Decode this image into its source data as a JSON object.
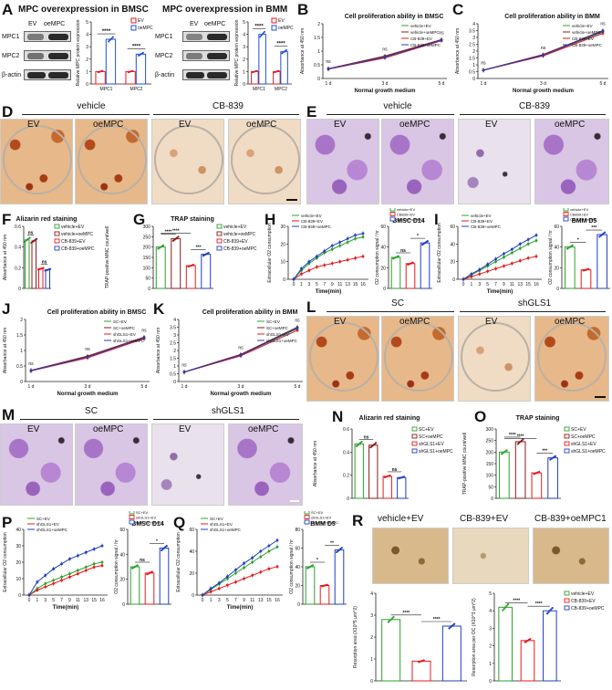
{
  "panels": {
    "A": {
      "letter": "A",
      "left": {
        "title": "MPC overexpression in BMSC",
        "cols": [
          "EV",
          "oeMPC"
        ],
        "rows": [
          "MPC1",
          "MPC2",
          "β-actin"
        ],
        "legend": [
          "EV",
          "oeMPC"
        ],
        "ylabel": "Relative MPC protein expression",
        "sig": [
          "****",
          "****"
        ]
      },
      "right": {
        "title": "MPC overexpression in BMM",
        "cols": [
          "EV",
          "oeMPC"
        ],
        "rows": [
          "MPC1",
          "MPC2",
          "β-actin"
        ],
        "legend": [
          "EV",
          "oeMPC"
        ],
        "ylabel": "Relative MPC protein expression",
        "sig": [
          "****",
          "****"
        ]
      }
    },
    "B": {
      "letter": "B"
    },
    "C": {
      "letter": "C"
    },
    "D": {
      "letter": "D",
      "groups": [
        "vehicle",
        "CB-839"
      ],
      "labels": [
        "EV",
        "oeMPC",
        "EV",
        "oeMPC"
      ]
    },
    "E": {
      "letter": "E",
      "groups": [
        "vehicle",
        "CB-839"
      ],
      "labels": [
        "EV",
        "oeMPC",
        "EV",
        "oeMPC"
      ]
    },
    "F": {
      "letter": "F"
    },
    "G": {
      "letter": "G"
    },
    "H": {
      "letter": "H"
    },
    "I": {
      "letter": "I"
    },
    "J": {
      "letter": "J"
    },
    "K": {
      "letter": "K"
    },
    "L": {
      "letter": "L",
      "groups": [
        "SC",
        "shGLS1"
      ],
      "labels": [
        "EV",
        "oeMPC",
        "EV",
        "oeMPC"
      ]
    },
    "M": {
      "letter": "M",
      "groups": [
        "SC",
        "shGLS1"
      ],
      "labels": [
        "EV",
        "oeMPC",
        "EV",
        "oeMPC"
      ]
    },
    "N": {
      "letter": "N"
    },
    "O": {
      "letter": "O"
    },
    "P": {
      "letter": "P"
    },
    "Q": {
      "letter": "Q"
    },
    "R": {
      "letter": "R",
      "labels": [
        "vehicle+EV",
        "CB-839+EV",
        "CB-839+oeMPC1"
      ]
    }
  },
  "chart_data": [
    {
      "id": "A-BMSC",
      "type": "bar",
      "categories": [
        "MPC1",
        "MPC2"
      ],
      "series": [
        {
          "name": "EV",
          "values": [
            1.0,
            1.0
          ]
        },
        {
          "name": "oeMPC",
          "values": [
            3.6,
            2.4
          ]
        }
      ],
      "ylabel": "Relative MPC protein expression",
      "ylim": [
        0,
        5
      ],
      "yticks": [
        0,
        1,
        2,
        3,
        4,
        5
      ],
      "sig": [
        "****",
        "****"
      ],
      "colors": [
        "#e41a1c",
        "#1f4fd8"
      ]
    },
    {
      "id": "A-BMM",
      "type": "bar",
      "categories": [
        "MPC1",
        "MPC2"
      ],
      "series": [
        {
          "name": "EV",
          "values": [
            1.0,
            1.0
          ]
        },
        {
          "name": "oeMPC",
          "values": [
            4.0,
            2.6
          ]
        }
      ],
      "ylabel": "Relative MPC protein expression",
      "ylim": [
        0,
        5
      ],
      "yticks": [
        0,
        1,
        2,
        3,
        4,
        5
      ],
      "sig": [
        "****",
        "****"
      ],
      "colors": [
        "#e41a1c",
        "#1f4fd8"
      ]
    },
    {
      "id": "B",
      "type": "line",
      "title": "Cell proliferation ability in BMSC",
      "categories": [
        "1 d",
        "3 d",
        "5 d"
      ],
      "series": [
        {
          "name": "vehicle+EV",
          "values": [
            0.35,
            0.8,
            1.4
          ]
        },
        {
          "name": "vehicle+oeMPC",
          "values": [
            0.36,
            0.82,
            1.42
          ]
        },
        {
          "name": "CB-839+EV",
          "values": [
            0.34,
            0.75,
            1.38
          ]
        },
        {
          "name": "CB-839+oeMPC",
          "values": [
            0.35,
            0.78,
            1.4
          ]
        }
      ],
      "xlabel": "Normal growth medium",
      "ylabel": "Absorbance at 450 nm",
      "ylim": [
        0,
        2.0
      ],
      "yticks": [
        0,
        0.5,
        1.0,
        1.5,
        2.0
      ],
      "sig": [
        "ns",
        "ns",
        "ns"
      ],
      "colors": [
        "#2ca02c",
        "#8b1a1a",
        "#e41a1c",
        "#1f3fbf"
      ]
    },
    {
      "id": "C",
      "type": "line",
      "title": "Cell proliferation ability in BMM",
      "categories": [
        "1 d",
        "3 d",
        "5 d"
      ],
      "series": [
        {
          "name": "vehicle+EV",
          "values": [
            0.6,
            1.7,
            3.4
          ]
        },
        {
          "name": "vehicle+oeMPC",
          "values": [
            0.62,
            1.75,
            3.5
          ]
        },
        {
          "name": "CB-839+EV",
          "values": [
            0.6,
            1.65,
            3.3
          ]
        },
        {
          "name": "CB-839+oeMPC",
          "values": [
            0.61,
            1.7,
            3.45
          ]
        }
      ],
      "xlabel": "Normal growth medium",
      "ylabel": "Absorbance at 450 nm",
      "ylim": [
        0,
        4.0
      ],
      "yticks": [
        0,
        0.5,
        1.0,
        1.5,
        2.0,
        2.5,
        3.0,
        3.5,
        4.0
      ],
      "sig": [
        "ns",
        "ns",
        "ns"
      ],
      "colors": [
        "#2ca02c",
        "#8b1a1a",
        "#e41a1c",
        "#1f3fbf"
      ]
    },
    {
      "id": "F",
      "type": "bar",
      "title": "Alizarin red staining",
      "categories": [
        "vehicle+EV",
        "vehicle+oeMPC",
        "CB-839+EV",
        "CB-839+oeMPC"
      ],
      "values": [
        0.47,
        0.46,
        0.19,
        0.18
      ],
      "ylabel": "Absorbance at 450 nm",
      "ylim": [
        0,
        0.6
      ],
      "yticks": [
        0,
        0.2,
        0.4,
        0.6
      ],
      "sig": [
        "ns",
        "ns"
      ],
      "colors": [
        "#2ca02c",
        "#8b1a1a",
        "#e41a1c",
        "#1f3fbf"
      ]
    },
    {
      "id": "G",
      "type": "bar",
      "title": "TRAP staining",
      "categories": [
        "vehicle+EV",
        "vehicle+oeMPC",
        "CB-839+EV",
        "CB-839+oeMPC"
      ],
      "values": [
        200,
        240,
        110,
        165
      ],
      "ylabel": "TRAP-positive MNC count/well",
      "ylim": [
        0,
        300
      ],
      "yticks": [
        0,
        50,
        100,
        150,
        200,
        250,
        300
      ],
      "sig": [
        "****",
        "***",
        "****"
      ],
      "colors": [
        "#2ca02c",
        "#8b1a1a",
        "#e41a1c",
        "#1f3fbf"
      ]
    },
    {
      "id": "H",
      "type": "line",
      "categories": [
        "0",
        "1",
        "3",
        "5",
        "7",
        "9",
        "11",
        "13",
        "15",
        "16"
      ],
      "xlabel": "Time(min)",
      "series": [
        {
          "name": "vehicle+EV",
          "values": [
            0,
            5,
            9,
            12,
            15,
            17,
            19,
            21,
            23,
            24
          ]
        },
        {
          "name": "CB-839+EV",
          "values": [
            0,
            3,
            5,
            7,
            8,
            9,
            10,
            11,
            12,
            13
          ]
        },
        {
          "name": "CB-839+oeMPC",
          "values": [
            0,
            6,
            10,
            13,
            16,
            19,
            21,
            23,
            25,
            26
          ]
        }
      ],
      "ylabel": "Extracellular O2 consumption",
      "ylim": [
        0,
        30
      ],
      "yticks": [
        0,
        10,
        20,
        30
      ],
      "colors": [
        "#2ca02c",
        "#e41a1c",
        "#1f3fbf"
      ]
    },
    {
      "id": "H-bar",
      "type": "bar",
      "title": "BMSC D14",
      "categories": [
        "vehicle+EV",
        "CB839+EV",
        "CB-839+oeMPC"
      ],
      "values": [
        30,
        24,
        44
      ],
      "ylabel": "O2 consumption signal / hr",
      "ylim": [
        0,
        60
      ],
      "yticks": [
        0,
        20,
        40,
        60
      ],
      "sig": [
        "ns",
        "*"
      ],
      "colors": [
        "#2ca02c",
        "#e41a1c",
        "#1f3fbf"
      ]
    },
    {
      "id": "I",
      "type": "line",
      "categories": [
        "0",
        "1",
        "3",
        "5",
        "7",
        "9",
        "11",
        "13",
        "15",
        "16"
      ],
      "xlabel": "Time(min)",
      "series": [
        {
          "name": "vehicle+EV",
          "values": [
            0,
            5,
            10,
            15,
            20,
            25,
            30,
            35,
            40,
            44
          ]
        },
        {
          "name": "CB-839+EV",
          "values": [
            0,
            3,
            6,
            9,
            12,
            15,
            18,
            21,
            24,
            26
          ]
        },
        {
          "name": "CB-839+oeMPC",
          "values": [
            0,
            6,
            11,
            17,
            23,
            29,
            34,
            40,
            45,
            50
          ]
        }
      ],
      "ylabel": "Extracellular O2 consumption",
      "ylim": [
        0,
        60
      ],
      "yticks": [
        0,
        20,
        40,
        60
      ],
      "colors": [
        "#2ca02c",
        "#e41a1c",
        "#1f3fbf"
      ]
    },
    {
      "id": "I-bar",
      "type": "bar",
      "title": "BMM D5",
      "categories": [
        "vehicle+EV",
        "CB839+EV",
        "CB-839+oeMPC"
      ],
      "values": [
        40,
        18,
        52
      ],
      "ylabel": "O2 consumption signal / hr",
      "ylim": [
        0,
        60
      ],
      "yticks": [
        0,
        20,
        40,
        60
      ],
      "sig": [
        "*",
        "***"
      ],
      "colors": [
        "#2ca02c",
        "#e41a1c",
        "#1f3fbf"
      ]
    },
    {
      "id": "J",
      "type": "line",
      "title": "Cell proliferation ability in BMSC",
      "categories": [
        "1 d",
        "3 d",
        "5 d"
      ],
      "series": [
        {
          "name": "SC+EV",
          "values": [
            0.35,
            0.8,
            1.4
          ]
        },
        {
          "name": "SC+oeMPC",
          "values": [
            0.36,
            0.82,
            1.43
          ]
        },
        {
          "name": "shGLS1+EV",
          "values": [
            0.34,
            0.76,
            1.38
          ]
        },
        {
          "name": "shGLS1+oeMPC",
          "values": [
            0.35,
            0.79,
            1.41
          ]
        }
      ],
      "xlabel": "Normal growth medium",
      "ylabel": "Absorbance at 450 nm",
      "ylim": [
        0,
        2.0
      ],
      "yticks": [
        0,
        0.5,
        1.0,
        1.5,
        2.0
      ],
      "sig": [
        "ns",
        "ns",
        "ns"
      ],
      "colors": [
        "#2ca02c",
        "#8b1a1a",
        "#e41a1c",
        "#1f3fbf"
      ]
    },
    {
      "id": "K",
      "type": "line",
      "title": "Cell proliferation ability in BMM",
      "categories": [
        "1 d",
        "3 d",
        "5 d"
      ],
      "series": [
        {
          "name": "SC+EV",
          "values": [
            0.6,
            1.7,
            3.4
          ]
        },
        {
          "name": "SC+oeMPC",
          "values": [
            0.62,
            1.75,
            3.5
          ]
        },
        {
          "name": "shGLS1+EV",
          "values": [
            0.6,
            1.65,
            3.3
          ]
        },
        {
          "name": "shGLS1+oeMPC",
          "values": [
            0.61,
            1.7,
            3.45
          ]
        }
      ],
      "xlabel": "Normal growth medium",
      "ylabel": "Absorbance at 450 nm",
      "ylim": [
        0,
        4.0
      ],
      "yticks": [
        0,
        0.5,
        1.0,
        1.5,
        2.0,
        2.5,
        3.0,
        3.5,
        4.0
      ],
      "sig": [
        "ns",
        "ns",
        "ns"
      ],
      "colors": [
        "#2ca02c",
        "#8b1a1a",
        "#e41a1c",
        "#1f3fbf"
      ]
    },
    {
      "id": "N",
      "type": "bar",
      "title": "Alizarin red staining",
      "categories": [
        "SC+EV",
        "SC+oeMPC",
        "shGLS1+EV",
        "shGLS1+oeMPC"
      ],
      "values": [
        0.47,
        0.46,
        0.19,
        0.18
      ],
      "ylabel": "Absorbance at 450 nm",
      "ylim": [
        0,
        0.6
      ],
      "yticks": [
        0,
        0.2,
        0.4,
        0.6
      ],
      "sig": [
        "ns",
        "ns"
      ],
      "colors": [
        "#2ca02c",
        "#8b1a1a",
        "#e41a1c",
        "#1f3fbf"
      ]
    },
    {
      "id": "O",
      "type": "bar",
      "title": "TRAP staining",
      "categories": [
        "SC+EV",
        "SC+oeMPC",
        "shGLS1+EV",
        "shGLS1+oeMPC"
      ],
      "values": [
        200,
        245,
        110,
        175
      ],
      "ylabel": "TRAP-positive MNC count/well",
      "ylim": [
        0,
        300
      ],
      "yticks": [
        0,
        50,
        100,
        150,
        200,
        250,
        300
      ],
      "sig": [
        "****",
        "***",
        "****"
      ],
      "colors": [
        "#2ca02c",
        "#8b1a1a",
        "#e41a1c",
        "#1f3fbf"
      ]
    },
    {
      "id": "P",
      "type": "line",
      "categories": [
        "0",
        "1",
        "3",
        "5",
        "7",
        "9",
        "11",
        "13",
        "15",
        "16"
      ],
      "xlabel": "Time(min)",
      "series": [
        {
          "name": "SC+EV",
          "values": [
            0,
            4,
            7,
            9,
            11,
            13,
            15,
            17,
            19,
            20
          ]
        },
        {
          "name": "shGLS1+EV",
          "values": [
            0,
            3,
            5,
            7,
            9,
            11,
            13,
            15,
            17,
            18
          ]
        },
        {
          "name": "shGLS1+oeMPC",
          "values": [
            0,
            8,
            12,
            16,
            19,
            22,
            24,
            26,
            28,
            30
          ]
        }
      ],
      "ylabel": "Extracellular O2 consumption",
      "ylim": [
        0,
        40
      ],
      "yticks": [
        0,
        10,
        20,
        30,
        40
      ],
      "colors": [
        "#2ca02c",
        "#e41a1c",
        "#1f3fbf"
      ]
    },
    {
      "id": "P-bar",
      "type": "bar",
      "title": "BMSC D14",
      "categories": [
        "SC+EV",
        "shGLS1+EV",
        "shGLS1+oeMPC"
      ],
      "values": [
        30,
        25,
        45
      ],
      "ylabel": "O2 consumption signal / hr",
      "ylim": [
        0,
        60
      ],
      "yticks": [
        0,
        20,
        40,
        60
      ],
      "sig": [
        "ns",
        "*"
      ],
      "colors": [
        "#2ca02c",
        "#e41a1c",
        "#1f3fbf"
      ]
    },
    {
      "id": "Q",
      "type": "line",
      "categories": [
        "0",
        "1",
        "3",
        "5",
        "7",
        "9",
        "11",
        "13",
        "15",
        "16"
      ],
      "xlabel": "Time(min)",
      "series": [
        {
          "name": "SC+EV",
          "values": [
            0,
            5,
            10,
            15,
            20,
            25,
            30,
            35,
            40,
            44
          ]
        },
        {
          "name": "shGLS1+EV",
          "values": [
            0,
            3,
            6,
            9,
            12,
            15,
            18,
            21,
            24,
            26
          ]
        },
        {
          "name": "shGLS1+oeMPC",
          "values": [
            0,
            6,
            11,
            17,
            23,
            29,
            34,
            40,
            45,
            50
          ]
        }
      ],
      "ylabel": "Extracellular O2 consumption",
      "ylim": [
        0,
        60
      ],
      "yticks": [
        0,
        20,
        40,
        60
      ],
      "colors": [
        "#2ca02c",
        "#e41a1c",
        "#1f3fbf"
      ]
    },
    {
      "id": "Q-bar",
      "type": "bar",
      "title": "BMM D5",
      "categories": [
        "SC+EV",
        "shGLS1+EV",
        "shGLS1+oeMPC"
      ],
      "values": [
        40,
        20,
        58
      ],
      "ylabel": "O2 consumption signal / hr",
      "ylim": [
        0,
        80
      ],
      "yticks": [
        0,
        20,
        40,
        60,
        80
      ],
      "sig": [
        "*",
        "**"
      ],
      "colors": [
        "#2ca02c",
        "#e41a1c",
        "#1f3fbf"
      ]
    },
    {
      "id": "R-area",
      "type": "bar",
      "categories": [
        "vehicle+EV",
        "CB-839+EV",
        "CB-839+oeMPC"
      ],
      "values": [
        2.8,
        0.9,
        2.5
      ],
      "ylabel": "Resorption area (X10^5 μm^2)",
      "ylim": [
        0,
        4
      ],
      "yticks": [
        0,
        1,
        2,
        3,
        4
      ],
      "sig": [
        "****",
        "****"
      ],
      "colors": [
        "#2ca02c",
        "#e41a1c",
        "#1f3fbf"
      ]
    },
    {
      "id": "R-perOC",
      "type": "bar",
      "categories": [
        "vehicle+EV",
        "CB-839+EV",
        "CB-839+oeMPC"
      ],
      "values": [
        4.2,
        2.3,
        4.0
      ],
      "ylabel": "Resorption area per OC (X10^3 μm^2)",
      "ylim": [
        0,
        5
      ],
      "yticks": [
        0,
        1,
        2,
        3,
        4,
        5
      ],
      "sig": [
        "****",
        "****"
      ],
      "colors": [
        "#2ca02c",
        "#e41a1c",
        "#1f3fbf"
      ]
    }
  ]
}
